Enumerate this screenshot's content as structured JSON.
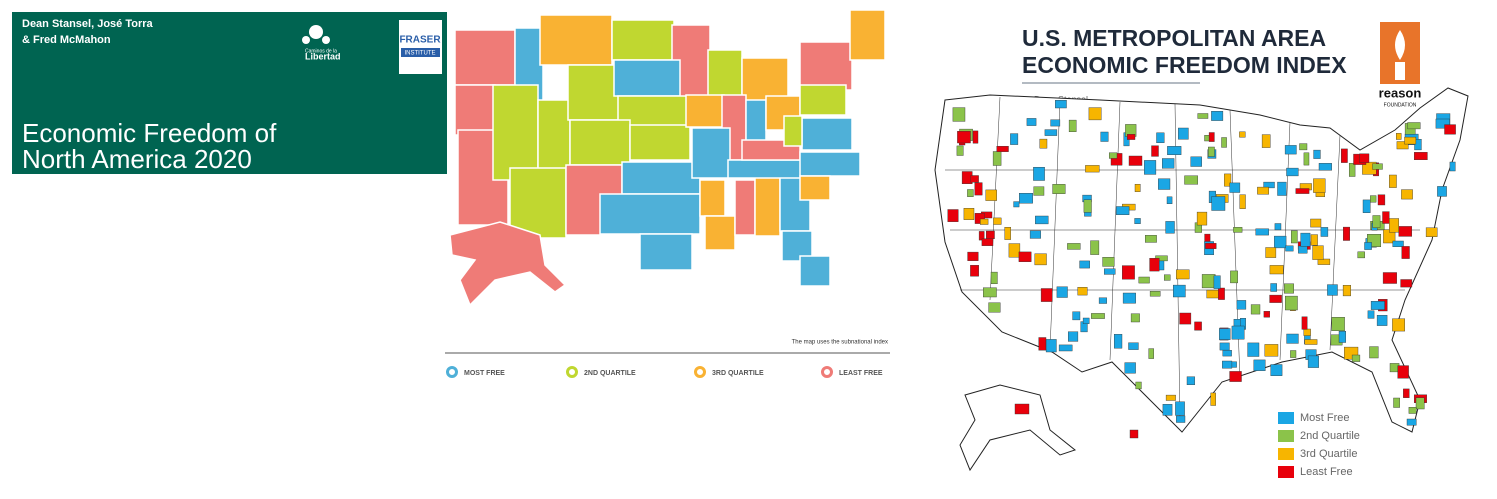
{
  "cover": {
    "authors": [
      "Dean Stansel, José Torra",
      "& Fred McMahon"
    ],
    "logo_left": [
      "Caminos de la",
      "Libertad"
    ],
    "logo_right": [
      "FRASER",
      "INSTITUTE"
    ],
    "title": [
      "Economic Freedom of",
      "North America 2020"
    ]
  },
  "state_map": {
    "note": "The map uses the subnational index",
    "legend": [
      {
        "label": "MOST FREE",
        "color": "#4fb0d8"
      },
      {
        "label": "2ND QUARTILE",
        "color": "#c0d730"
      },
      {
        "label": "3RD QUARTILE",
        "color": "#f9b233"
      },
      {
        "label": "LEAST FREE",
        "color": "#ef7b77"
      }
    ]
  },
  "metro_map": {
    "title": [
      "U.S. METROPOLITAN AREA",
      "ECONOMIC FREEDOM INDEX"
    ],
    "byline": "by Dean Stansel",
    "logo": [
      "reason",
      "FOUNDATION"
    ],
    "legend": [
      {
        "label": "Most Free",
        "color": "#1aa6e4"
      },
      {
        "label": "2nd Quartile",
        "color": "#8bc34a"
      },
      {
        "label": "3rd Quartile",
        "color": "#f7b500"
      },
      {
        "label": "Least Free",
        "color": "#e8000b"
      }
    ]
  }
}
